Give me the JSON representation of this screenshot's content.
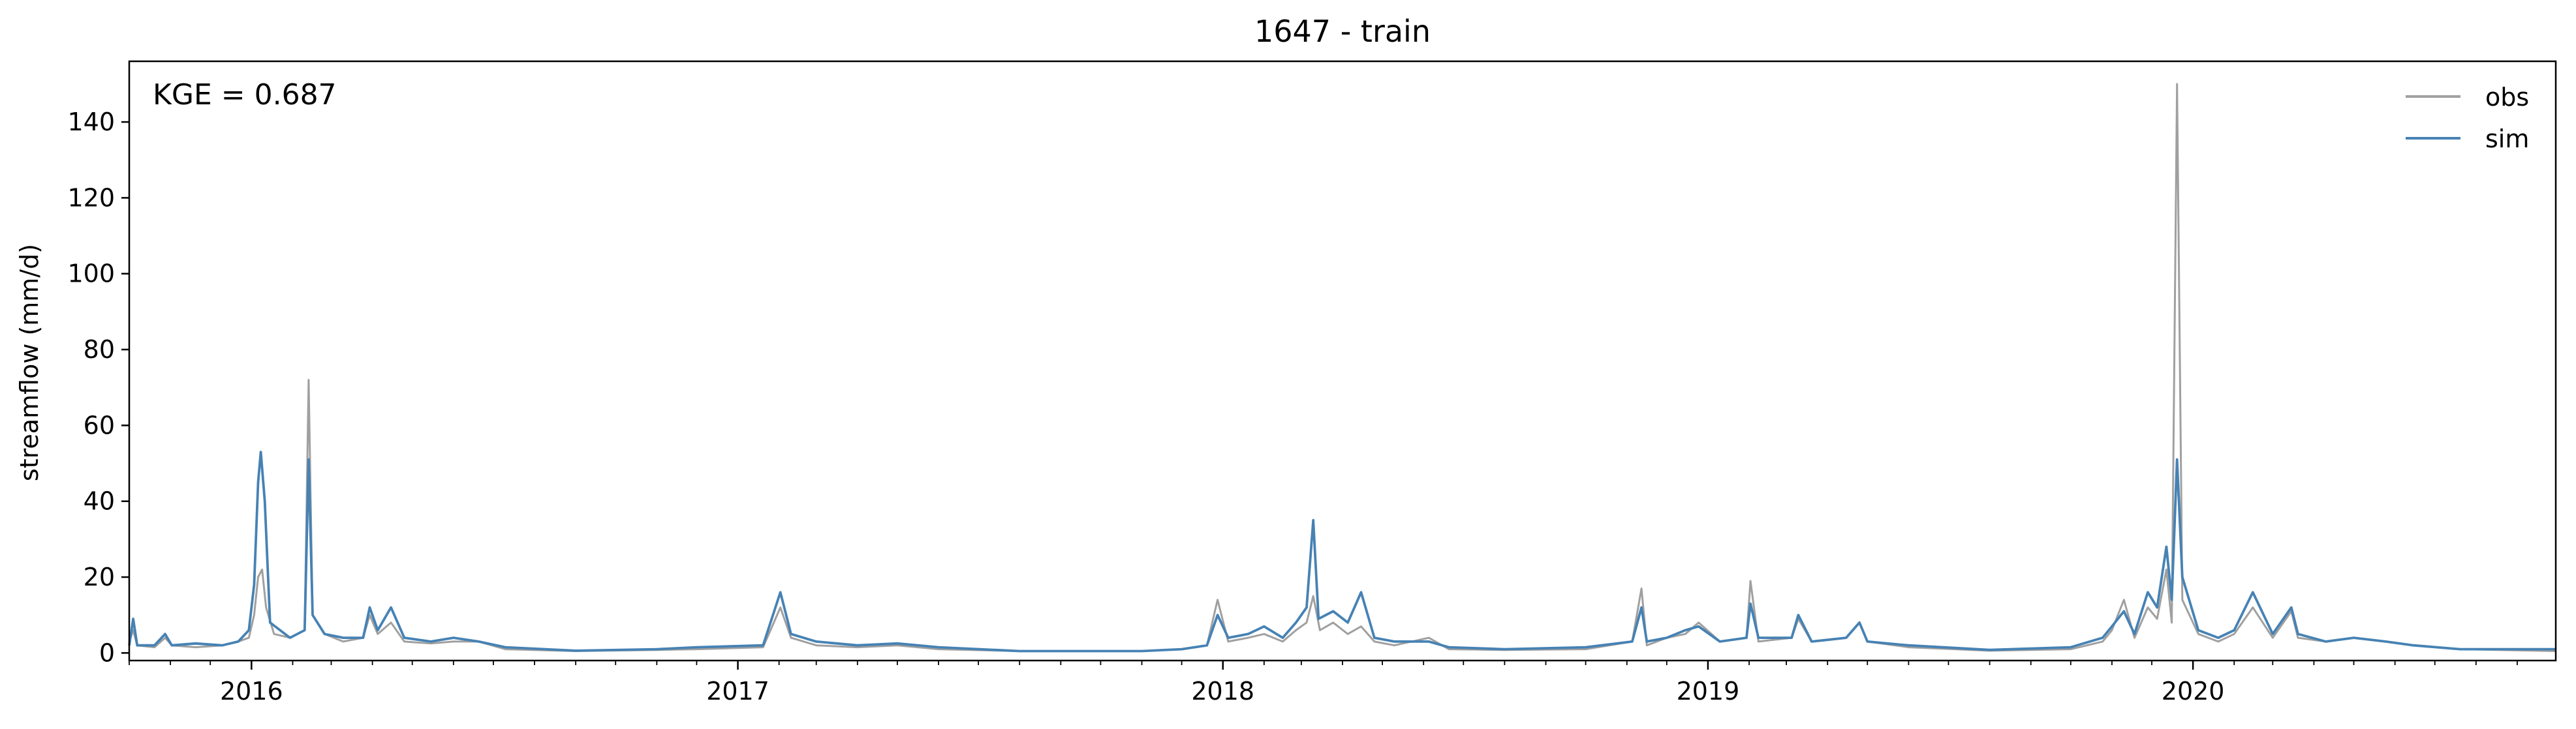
{
  "chart_data": {
    "type": "line",
    "title": "1647 - train",
    "xlabel": "",
    "ylabel": "streamflow (mm/d)",
    "annotation": "KGE = 0.687",
    "x_range": [
      "2015-10-01",
      "2020-09-30"
    ],
    "ylim": [
      -2,
      156
    ],
    "yticks": [
      0,
      20,
      40,
      60,
      80,
      100,
      120,
      140
    ],
    "xticks": [
      {
        "date": "2016-01-01",
        "label": "2016"
      },
      {
        "date": "2017-01-01",
        "label": "2017"
      },
      {
        "date": "2018-01-01",
        "label": "2018"
      },
      {
        "date": "2019-01-01",
        "label": "2019"
      },
      {
        "date": "2020-01-01",
        "label": "2020"
      }
    ],
    "grid": false,
    "legend_position": "top-right",
    "series": [
      {
        "name": "obs",
        "color": "#a0a0a0",
        "points": [
          [
            "2015-10-01",
            3
          ],
          [
            "2015-10-04",
            6
          ],
          [
            "2015-10-07",
            2
          ],
          [
            "2015-10-20",
            1.5
          ],
          [
            "2015-10-28",
            4
          ],
          [
            "2015-11-02",
            2
          ],
          [
            "2015-11-20",
            1.5
          ],
          [
            "2015-12-10",
            2
          ],
          [
            "2015-12-22",
            3
          ],
          [
            "2015-12-30",
            4
          ],
          [
            "2016-01-03",
            10
          ],
          [
            "2016-01-06",
            20
          ],
          [
            "2016-01-09",
            22
          ],
          [
            "2016-01-12",
            12
          ],
          [
            "2016-01-18",
            5
          ],
          [
            "2016-01-30",
            4
          ],
          [
            "2016-02-10",
            6
          ],
          [
            "2016-02-13",
            72
          ],
          [
            "2016-02-16",
            10
          ],
          [
            "2016-02-25",
            5
          ],
          [
            "2016-03-10",
            3
          ],
          [
            "2016-03-25",
            4
          ],
          [
            "2016-03-30",
            10
          ],
          [
            "2016-04-05",
            5
          ],
          [
            "2016-04-15",
            8
          ],
          [
            "2016-04-25",
            3
          ],
          [
            "2016-05-15",
            2.5
          ],
          [
            "2016-06-01",
            3
          ],
          [
            "2016-06-20",
            3
          ],
          [
            "2016-07-10",
            1
          ],
          [
            "2016-09-01",
            0.5
          ],
          [
            "2016-11-01",
            0.8
          ],
          [
            "2016-12-01",
            1
          ],
          [
            "2017-01-20",
            1.5
          ],
          [
            "2017-02-02",
            12
          ],
          [
            "2017-02-10",
            4
          ],
          [
            "2017-03-01",
            2
          ],
          [
            "2017-04-01",
            1.5
          ],
          [
            "2017-05-01",
            2
          ],
          [
            "2017-06-01",
            1
          ],
          [
            "2017-08-01",
            0.5
          ],
          [
            "2017-11-01",
            0.5
          ],
          [
            "2017-12-01",
            1
          ],
          [
            "2017-12-20",
            2
          ],
          [
            "2017-12-28",
            14
          ],
          [
            "2018-01-05",
            3
          ],
          [
            "2018-01-20",
            4
          ],
          [
            "2018-02-01",
            5
          ],
          [
            "2018-02-15",
            3
          ],
          [
            "2018-02-25",
            6
          ],
          [
            "2018-03-05",
            8
          ],
          [
            "2018-03-10",
            15
          ],
          [
            "2018-03-15",
            6
          ],
          [
            "2018-03-25",
            8
          ],
          [
            "2018-04-05",
            5
          ],
          [
            "2018-04-15",
            7
          ],
          [
            "2018-04-25",
            3
          ],
          [
            "2018-05-10",
            2
          ],
          [
            "2018-06-05",
            4
          ],
          [
            "2018-06-20",
            1
          ],
          [
            "2018-08-01",
            0.8
          ],
          [
            "2018-10-01",
            1
          ],
          [
            "2018-11-05",
            3
          ],
          [
            "2018-11-12",
            17
          ],
          [
            "2018-11-16",
            2
          ],
          [
            "2018-12-01",
            4
          ],
          [
            "2018-12-15",
            5
          ],
          [
            "2018-12-25",
            8
          ],
          [
            "2019-01-10",
            3
          ],
          [
            "2019-01-30",
            4
          ],
          [
            "2019-02-02",
            19
          ],
          [
            "2019-02-08",
            3
          ],
          [
            "2019-03-05",
            4
          ],
          [
            "2019-03-10",
            9
          ],
          [
            "2019-03-20",
            3
          ],
          [
            "2019-04-15",
            4
          ],
          [
            "2019-04-25",
            8
          ],
          [
            "2019-05-01",
            3
          ],
          [
            "2019-06-01",
            1.5
          ],
          [
            "2019-08-01",
            0.6
          ],
          [
            "2019-10-01",
            1
          ],
          [
            "2019-10-25",
            3
          ],
          [
            "2019-11-01",
            6
          ],
          [
            "2019-11-10",
            14
          ],
          [
            "2019-11-18",
            4
          ],
          [
            "2019-11-28",
            12
          ],
          [
            "2019-12-05",
            9
          ],
          [
            "2019-12-12",
            22
          ],
          [
            "2019-12-16",
            8
          ],
          [
            "2019-12-20",
            150
          ],
          [
            "2019-12-24",
            14
          ],
          [
            "2020-01-05",
            5
          ],
          [
            "2020-01-20",
            3
          ],
          [
            "2020-02-01",
            5
          ],
          [
            "2020-02-15",
            12
          ],
          [
            "2020-03-01",
            4
          ],
          [
            "2020-03-15",
            11
          ],
          [
            "2020-03-20",
            4
          ],
          [
            "2020-04-10",
            3
          ],
          [
            "2020-05-01",
            4
          ],
          [
            "2020-05-25",
            3
          ],
          [
            "2020-06-15",
            2
          ],
          [
            "2020-07-20",
            1
          ],
          [
            "2020-09-30",
            0.5
          ]
        ]
      },
      {
        "name": "sim",
        "color": "#4682b4",
        "points": [
          [
            "2015-10-01",
            2
          ],
          [
            "2015-10-04",
            9
          ],
          [
            "2015-10-07",
            2
          ],
          [
            "2015-10-20",
            2
          ],
          [
            "2015-10-28",
            5
          ],
          [
            "2015-11-02",
            2
          ],
          [
            "2015-11-20",
            2.5
          ],
          [
            "2015-12-10",
            2
          ],
          [
            "2015-12-22",
            3
          ],
          [
            "2015-12-30",
            6
          ],
          [
            "2016-01-03",
            18
          ],
          [
            "2016-01-06",
            45
          ],
          [
            "2016-01-08",
            53
          ],
          [
            "2016-01-11",
            40
          ],
          [
            "2016-01-15",
            8
          ],
          [
            "2016-01-30",
            4
          ],
          [
            "2016-02-10",
            6
          ],
          [
            "2016-02-13",
            51
          ],
          [
            "2016-02-16",
            10
          ],
          [
            "2016-02-25",
            5
          ],
          [
            "2016-03-10",
            4
          ],
          [
            "2016-03-25",
            4
          ],
          [
            "2016-03-30",
            12
          ],
          [
            "2016-04-05",
            6
          ],
          [
            "2016-04-15",
            12
          ],
          [
            "2016-04-25",
            4
          ],
          [
            "2016-05-15",
            3
          ],
          [
            "2016-06-01",
            4
          ],
          [
            "2016-06-20",
            3
          ],
          [
            "2016-07-10",
            1.5
          ],
          [
            "2016-09-01",
            0.6
          ],
          [
            "2016-11-01",
            1
          ],
          [
            "2016-12-01",
            1.5
          ],
          [
            "2017-01-20",
            2
          ],
          [
            "2017-02-02",
            16
          ],
          [
            "2017-02-10",
            5
          ],
          [
            "2017-03-01",
            3
          ],
          [
            "2017-04-01",
            2
          ],
          [
            "2017-05-01",
            2.5
          ],
          [
            "2017-06-01",
            1.5
          ],
          [
            "2017-08-01",
            0.5
          ],
          [
            "2017-11-01",
            0.5
          ],
          [
            "2017-12-01",
            1
          ],
          [
            "2017-12-20",
            2
          ],
          [
            "2017-12-28",
            10
          ],
          [
            "2018-01-05",
            4
          ],
          [
            "2018-01-20",
            5
          ],
          [
            "2018-02-01",
            7
          ],
          [
            "2018-02-15",
            4
          ],
          [
            "2018-02-25",
            8
          ],
          [
            "2018-03-05",
            12
          ],
          [
            "2018-03-10",
            35
          ],
          [
            "2018-03-14",
            9
          ],
          [
            "2018-03-25",
            11
          ],
          [
            "2018-04-05",
            8
          ],
          [
            "2018-04-15",
            16
          ],
          [
            "2018-04-25",
            4
          ],
          [
            "2018-05-10",
            3
          ],
          [
            "2018-06-05",
            3
          ],
          [
            "2018-06-20",
            1.5
          ],
          [
            "2018-08-01",
            1
          ],
          [
            "2018-10-01",
            1.5
          ],
          [
            "2018-11-05",
            3
          ],
          [
            "2018-11-12",
            12
          ],
          [
            "2018-11-16",
            3
          ],
          [
            "2018-12-01",
            4
          ],
          [
            "2018-12-15",
            6
          ],
          [
            "2018-12-25",
            7
          ],
          [
            "2019-01-10",
            3
          ],
          [
            "2019-01-30",
            4
          ],
          [
            "2019-02-02",
            13
          ],
          [
            "2019-02-08",
            4
          ],
          [
            "2019-03-05",
            4
          ],
          [
            "2019-03-10",
            10
          ],
          [
            "2019-03-20",
            3
          ],
          [
            "2019-04-15",
            4
          ],
          [
            "2019-04-25",
            8
          ],
          [
            "2019-05-01",
            3
          ],
          [
            "2019-06-01",
            2
          ],
          [
            "2019-08-01",
            0.8
          ],
          [
            "2019-10-01",
            1.5
          ],
          [
            "2019-10-25",
            4
          ],
          [
            "2019-11-01",
            7
          ],
          [
            "2019-11-10",
            11
          ],
          [
            "2019-11-18",
            5
          ],
          [
            "2019-11-28",
            16
          ],
          [
            "2019-12-05",
            12
          ],
          [
            "2019-12-12",
            28
          ],
          [
            "2019-12-16",
            14
          ],
          [
            "2019-12-20",
            51
          ],
          [
            "2019-12-24",
            20
          ],
          [
            "2020-01-05",
            6
          ],
          [
            "2020-01-20",
            4
          ],
          [
            "2020-02-01",
            6
          ],
          [
            "2020-02-15",
            16
          ],
          [
            "2020-03-01",
            5
          ],
          [
            "2020-03-15",
            12
          ],
          [
            "2020-03-20",
            5
          ],
          [
            "2020-04-10",
            3
          ],
          [
            "2020-05-01",
            4
          ],
          [
            "2020-05-25",
            3
          ],
          [
            "2020-06-15",
            2
          ],
          [
            "2020-07-20",
            1
          ],
          [
            "2020-09-30",
            1
          ]
        ]
      }
    ]
  }
}
